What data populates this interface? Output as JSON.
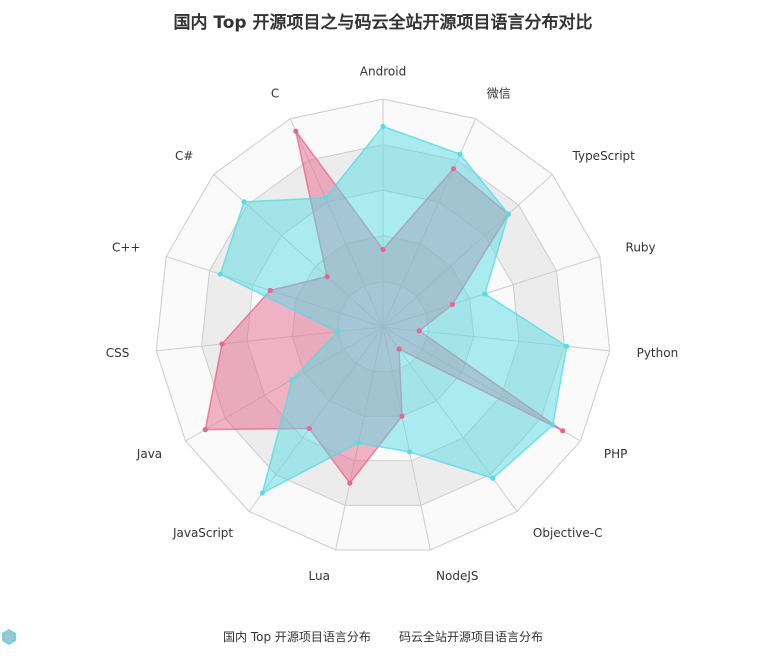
{
  "chart_data": {
    "type": "radar",
    "title": "国内 Top 开源项目之与码云全站开源项目语言分布对比",
    "categories": [
      "Android",
      "微信",
      "TypeScript",
      "Ruby",
      "Python",
      "PHP",
      "Objective-C",
      "NodeJS",
      "Lua",
      "JavaScript",
      "Java",
      "CSS",
      "C++",
      "C#",
      "C"
    ],
    "rmax": 100,
    "grid_levels": 5,
    "series": [
      {
        "name": "国内 Top 开源项目语言分布",
        "color": "#e8678e",
        "values": [
          34,
          76,
          74,
          32,
          16,
          91,
          12,
          40,
          70,
          55,
          90,
          71,
          52,
          33,
          94
        ]
      },
      {
        "name": "码云全站开源项目语言分布",
        "color": "#59dbe3",
        "values": [
          88,
          83,
          74,
          47,
          81,
          86,
          82,
          56,
          52,
          90,
          46,
          20,
          75,
          82,
          62
        ]
      }
    ]
  }
}
